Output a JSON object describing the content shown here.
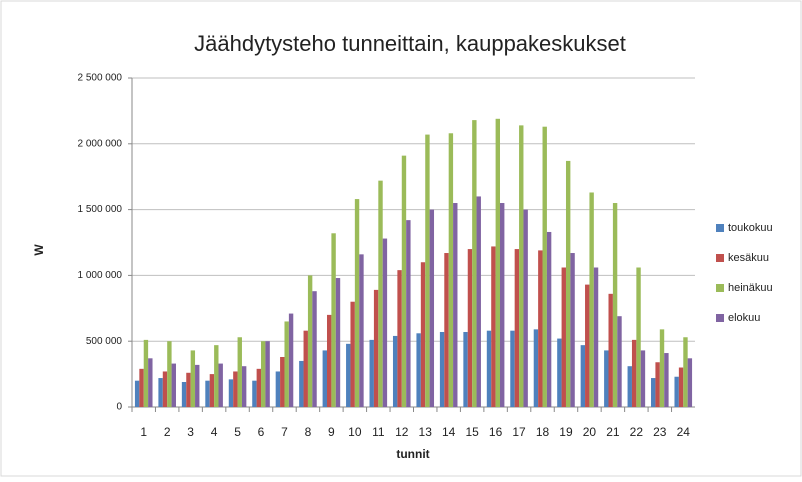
{
  "chart_data": {
    "type": "bar",
    "title": "Jäähdytysteho tunneittain, kauppakeskukset",
    "x_label": "tunnit",
    "y_label": "W",
    "categories": [
      "1",
      "2",
      "3",
      "4",
      "5",
      "6",
      "7",
      "8",
      "9",
      "10",
      "11",
      "12",
      "13",
      "14",
      "15",
      "16",
      "17",
      "18",
      "19",
      "20",
      "21",
      "22",
      "23",
      "24"
    ],
    "series": [
      {
        "name": "toukokuu",
        "color": "#4f81bd",
        "values": [
          200000,
          220000,
          190000,
          200000,
          210000,
          200000,
          270000,
          350000,
          430000,
          480000,
          510000,
          540000,
          560000,
          570000,
          570000,
          580000,
          580000,
          590000,
          520000,
          470000,
          430000,
          310000,
          220000,
          230000
        ]
      },
      {
        "name": "kesäkuu",
        "color": "#c0504d",
        "values": [
          290000,
          270000,
          260000,
          250000,
          270000,
          290000,
          380000,
          580000,
          700000,
          800000,
          890000,
          1040000,
          1100000,
          1170000,
          1200000,
          1220000,
          1200000,
          1190000,
          1060000,
          930000,
          860000,
          510000,
          340000,
          300000
        ]
      },
      {
        "name": "heinäkuu",
        "color": "#9bbb59",
        "values": [
          510000,
          500000,
          430000,
          470000,
          530000,
          500000,
          650000,
          1000000,
          1320000,
          1580000,
          1720000,
          1910000,
          2070000,
          2080000,
          2180000,
          2190000,
          2140000,
          2130000,
          1870000,
          1630000,
          1550000,
          1060000,
          590000,
          530000
        ]
      },
      {
        "name": "elokuu",
        "color": "#8064a2",
        "values": [
          370000,
          330000,
          320000,
          330000,
          310000,
          500000,
          710000,
          880000,
          980000,
          1160000,
          1280000,
          1420000,
          1500000,
          1550000,
          1600000,
          1550000,
          1500000,
          1330000,
          1170000,
          1060000,
          690000,
          430000,
          410000,
          370000
        ]
      }
    ],
    "ylim": [
      0,
      2500000
    ],
    "yticks": [
      0,
      {
        "value": 500000,
        "label": "500 000"
      },
      {
        "value": 1000000,
        "label": "1 000 000"
      },
      {
        "value": 1500000,
        "label": "1 500 000"
      },
      {
        "value": 2000000,
        "label": "2 000 000"
      },
      {
        "value": 2500000,
        "label": "2 500 000"
      }
    ],
    "grid": true,
    "legend": "right"
  }
}
